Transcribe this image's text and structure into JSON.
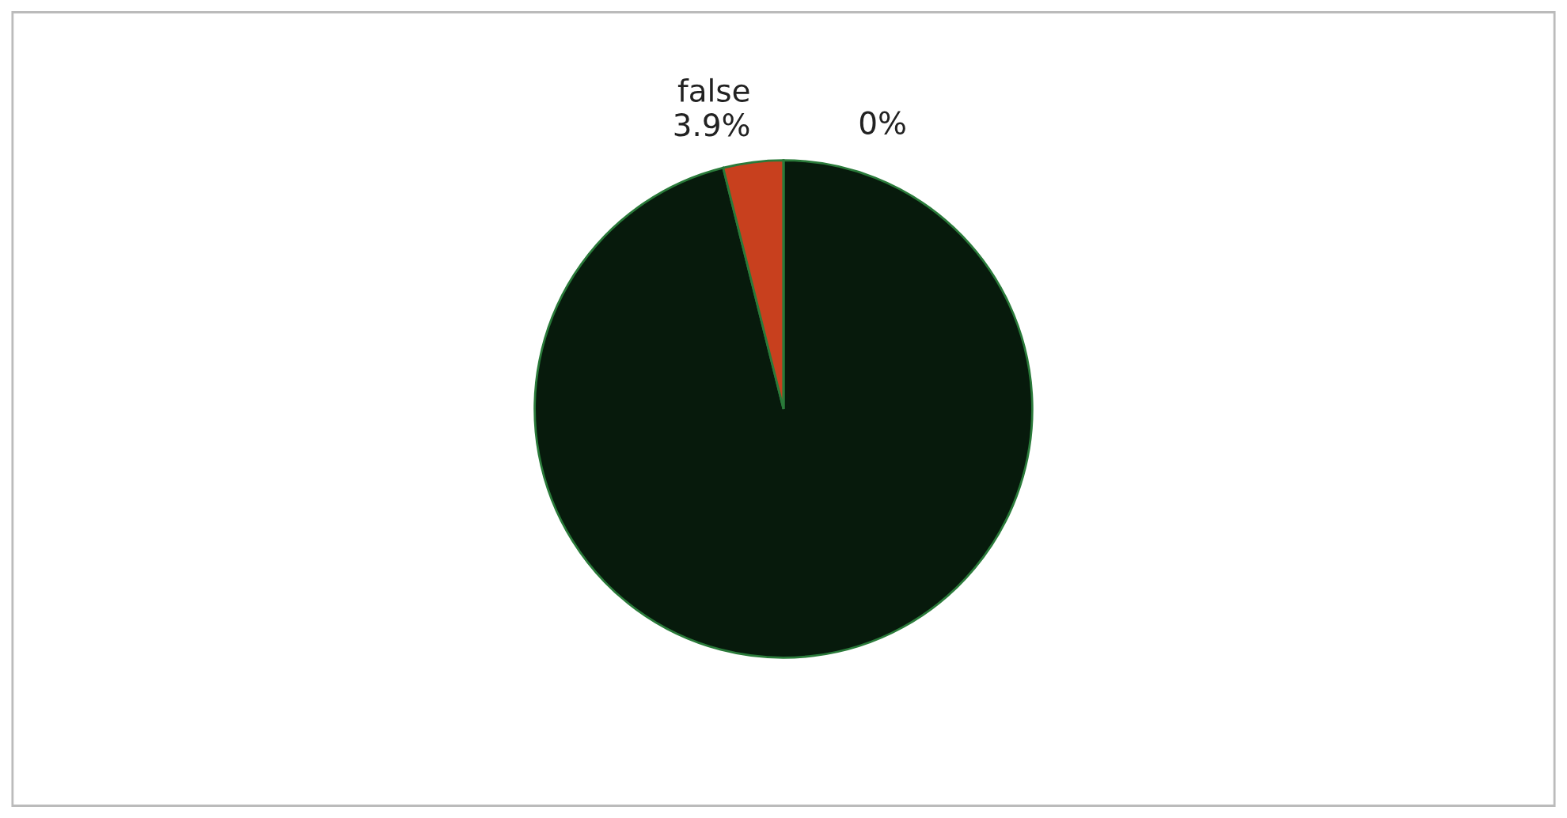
{
  "chart_data": {
    "type": "pie",
    "categories": [
      null,
      "false",
      null
    ],
    "values": [
      96.1,
      3.9,
      0
    ],
    "value_labels": [
      null,
      "3.9%",
      "0%"
    ],
    "colors": [
      "#071a0c",
      "#c8401e",
      "#1f7a4a"
    ],
    "legend": false
  }
}
